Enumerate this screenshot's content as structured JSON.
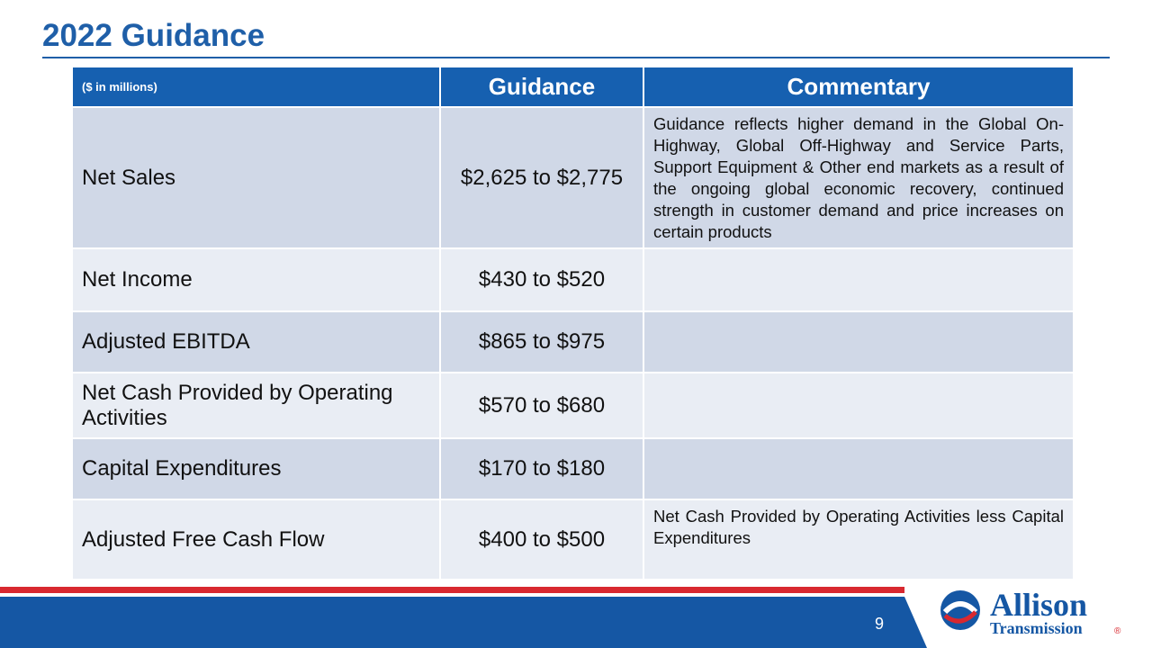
{
  "header": {
    "title": "2022 Guidance"
  },
  "table": {
    "columns": [
      "($ in millions)",
      "Guidance",
      "Commentary"
    ],
    "rows": [
      {
        "label": "Net Sales",
        "guidance": "$2,625 to $2,775",
        "commentary": "Guidance reflects higher demand in the Global On-Highway, Global Off-Highway and Service Parts, Support Equipment & Other end markets as a result of the ongoing global economic recovery, continued strength in customer demand and price increases on certain products"
      },
      {
        "label": "Net Income",
        "guidance": "$430 to $520"
      },
      {
        "label": "Adjusted EBITDA",
        "guidance": "$865 to $975"
      },
      {
        "label": "Net Cash Provided by Operating Activities",
        "guidance": "$570 to $680"
      },
      {
        "label": "Capital Expenditures",
        "guidance": "$170 to $180"
      },
      {
        "label": "Adjusted Free Cash Flow",
        "guidance": "$400 to $500",
        "commentary": "Net Cash Provided by Operating Activities less Capital Expenditures"
      }
    ]
  },
  "footer": {
    "page_number": "9",
    "logo": {
      "name": "Allison",
      "subtitle": "Transmission",
      "mark": "®"
    }
  }
}
